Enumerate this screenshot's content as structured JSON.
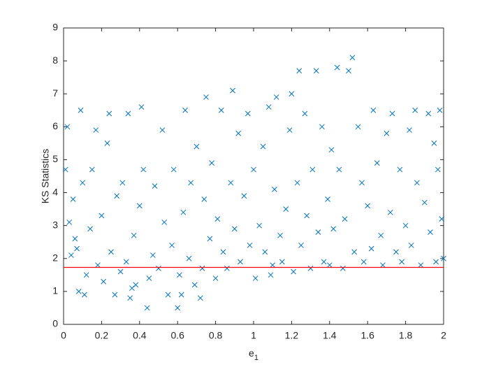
{
  "chart_data": {
    "type": "scatter",
    "y_label": "KS Statistics",
    "x_label": "e",
    "x_label_subscript": "1",
    "color": "#0072bd",
    "x": [
      0.01,
      0.02,
      0.03,
      0.04,
      0.05,
      0.06,
      0.08,
      0.09,
      0.1,
      0.11,
      0.12,
      0.14,
      0.15,
      0.17,
      0.18,
      0.2,
      0.21,
      0.23,
      0.24,
      0.25,
      0.27,
      0.28,
      0.3,
      0.31,
      0.33,
      0.34,
      0.35,
      0.37,
      0.38,
      0.4,
      0.41,
      0.42,
      0.44,
      0.45,
      0.47,
      0.48,
      0.5,
      0.52,
      0.53,
      0.55,
      0.57,
      0.58,
      0.6,
      0.61,
      0.63,
      0.64,
      0.66,
      0.67,
      0.69,
      0.7,
      0.72,
      0.73,
      0.74,
      0.75,
      0.77,
      0.78,
      0.8,
      0.81,
      0.83,
      0.84,
      0.86,
      0.88,
      0.89,
      0.9,
      0.92,
      0.93,
      0.95,
      0.97,
      0.98,
      1.0,
      1.01,
      1.03,
      1.05,
      1.06,
      1.08,
      1.1,
      1.11,
      1.12,
      1.14,
      1.15,
      1.17,
      1.19,
      1.2,
      1.21,
      1.23,
      1.24,
      1.25,
      1.27,
      1.28,
      1.3,
      1.31,
      1.33,
      1.34,
      1.36,
      1.37,
      1.39,
      1.41,
      1.42,
      1.44,
      1.45,
      1.47,
      1.48,
      1.5,
      1.52,
      1.53,
      1.55,
      1.57,
      1.58,
      1.6,
      1.62,
      1.63,
      1.65,
      1.67,
      1.68,
      1.7,
      1.72,
      1.73,
      1.75,
      1.77,
      1.78,
      1.8,
      1.82,
      1.83,
      1.85,
      1.86,
      1.88,
      1.9,
      1.92,
      1.93,
      1.95,
      1.96,
      1.97,
      1.98,
      1.99,
      2.0,
      0.07,
      0.36,
      0.62,
      1.09,
      1.4
    ],
    "values": [
      4.7,
      6.0,
      3.1,
      2.1,
      3.8,
      2.6,
      1.0,
      6.5,
      4.3,
      0.9,
      1.5,
      2.9,
      4.7,
      5.9,
      1.8,
      3.3,
      1.3,
      5.5,
      6.4,
      2.2,
      0.9,
      3.9,
      1.6,
      4.3,
      1.9,
      6.4,
      0.8,
      2.7,
      1.2,
      3.6,
      6.6,
      4.7,
      0.5,
      1.4,
      2.1,
      4.2,
      1.7,
      5.9,
      3.1,
      0.9,
      2.4,
      4.7,
      0.5,
      1.5,
      3.4,
      6.5,
      2.0,
      4.3,
      1.2,
      5.4,
      0.8,
      1.7,
      3.8,
      6.9,
      2.6,
      4.9,
      1.4,
      3.2,
      6.5,
      2.2,
      1.7,
      4.3,
      7.1,
      2.9,
      5.8,
      1.9,
      3.9,
      6.4,
      2.4,
      4.7,
      1.4,
      3.0,
      5.4,
      2.2,
      6.6,
      1.8,
      4.1,
      6.9,
      2.7,
      1.9,
      3.5,
      5.9,
      7.0,
      1.6,
      4.3,
      7.7,
      2.4,
      6.4,
      3.3,
      1.7,
      4.7,
      7.7,
      2.8,
      6.0,
      1.9,
      3.8,
      5.3,
      2.9,
      7.8,
      4.7,
      1.7,
      3.2,
      7.7,
      8.1,
      2.2,
      6.0,
      4.3,
      1.9,
      3.6,
      2.3,
      6.5,
      4.9,
      2.7,
      1.8,
      5.8,
      3.4,
      6.4,
      2.2,
      4.7,
      1.9,
      3.0,
      5.9,
      2.4,
      6.5,
      4.3,
      1.8,
      3.7,
      6.4,
      2.8,
      5.5,
      1.9,
      4.7,
      6.5,
      3.2,
      2.0,
      2.3,
      1.1,
      0.9,
      1.5,
      1.8
    ],
    "reference_line": {
      "y": 1.73,
      "color": "#ff0000"
    },
    "xlim": [
      0,
      2
    ],
    "xticks": [
      0,
      0.2,
      0.4,
      0.6,
      0.8,
      1,
      1.2,
      1.4,
      1.6,
      1.8,
      2
    ],
    "ylim": [
      0,
      9
    ],
    "yticks": [
      0,
      1,
      2,
      3,
      4,
      5,
      6,
      7,
      8,
      9
    ]
  }
}
